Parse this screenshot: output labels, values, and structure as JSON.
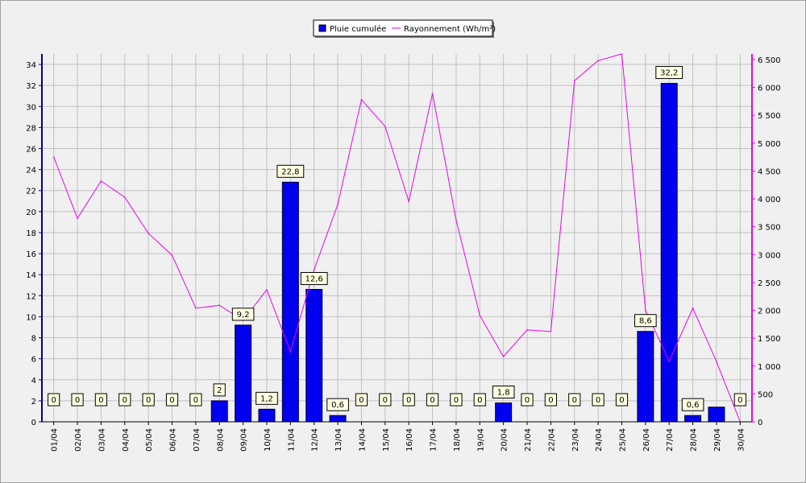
{
  "chart_data": {
    "type": "bar",
    "categories": [
      "01/04",
      "02/04",
      "03/04",
      "04/04",
      "05/04",
      "06/04",
      "07/04",
      "08/04",
      "09/04",
      "10/04",
      "11/04",
      "12/04",
      "13/04",
      "14/04",
      "15/04",
      "16/04",
      "17/04",
      "18/04",
      "19/04",
      "20/04",
      "21/04",
      "22/04",
      "23/04",
      "24/04",
      "25/04",
      "26/04",
      "27/04",
      "28/04",
      "29/04",
      "30/04"
    ],
    "series": [
      {
        "name": "Pluie cumulée",
        "type": "bar",
        "axis": "left",
        "color": "#0000ee",
        "values": [
          0,
          0,
          0,
          0,
          0,
          0,
          0,
          2,
          9.2,
          1.2,
          22.8,
          12.6,
          0.6,
          0,
          0,
          0,
          0,
          0,
          0,
          1.8,
          0,
          0,
          0,
          0,
          0,
          8.6,
          32.2,
          0.6,
          1.4,
          0
        ],
        "labels": [
          "0",
          "0",
          "0",
          "0",
          "0",
          "0",
          "0",
          "2",
          "9,2",
          "1,2",
          "22,8",
          "12,6",
          "0,6",
          "0",
          "0",
          "0",
          "0",
          "0",
          "0",
          "1,8",
          "0",
          "0",
          "0",
          "0",
          "0",
          "8,6",
          "32,2",
          "0,6",
          "",
          "0"
        ]
      },
      {
        "name": "Rayonnement (Wh/m²)",
        "type": "line",
        "axis": "right",
        "color": "#ee00ee",
        "values": [
          4750,
          3650,
          4320,
          4030,
          3380,
          2990,
          2040,
          2090,
          1820,
          2370,
          1260,
          2730,
          3900,
          5780,
          5300,
          3950,
          5890,
          3620,
          1910,
          1170,
          1650,
          1620,
          6120,
          6480,
          6600,
          2000,
          1090,
          2040,
          1080,
          0
        ]
      }
    ],
    "y_left": {
      "min": 0,
      "max": 35,
      "ticks": [
        "0",
        "2",
        "4",
        "6",
        "8",
        "10",
        "12",
        "14",
        "16",
        "18",
        "20",
        "22",
        "24",
        "26",
        "28",
        "30",
        "32",
        "34"
      ]
    },
    "y_right": {
      "min": 0,
      "max": 6600,
      "ticks": [
        "0",
        "500",
        "1 000",
        "1 500",
        "2 000",
        "2 500",
        "3 000",
        "3 500",
        "4 000",
        "4 500",
        "5 000",
        "5 500",
        "6 000",
        "6 500"
      ]
    },
    "grid": true,
    "legend": "top-center"
  },
  "colors": {
    "background": "#f0f0f0",
    "plot_background": "#f0f0f0",
    "grid": "#c0c0c0",
    "left_axis": "#00008b",
    "right_axis": "#ee00ee",
    "label_box": "#ffffe1"
  }
}
